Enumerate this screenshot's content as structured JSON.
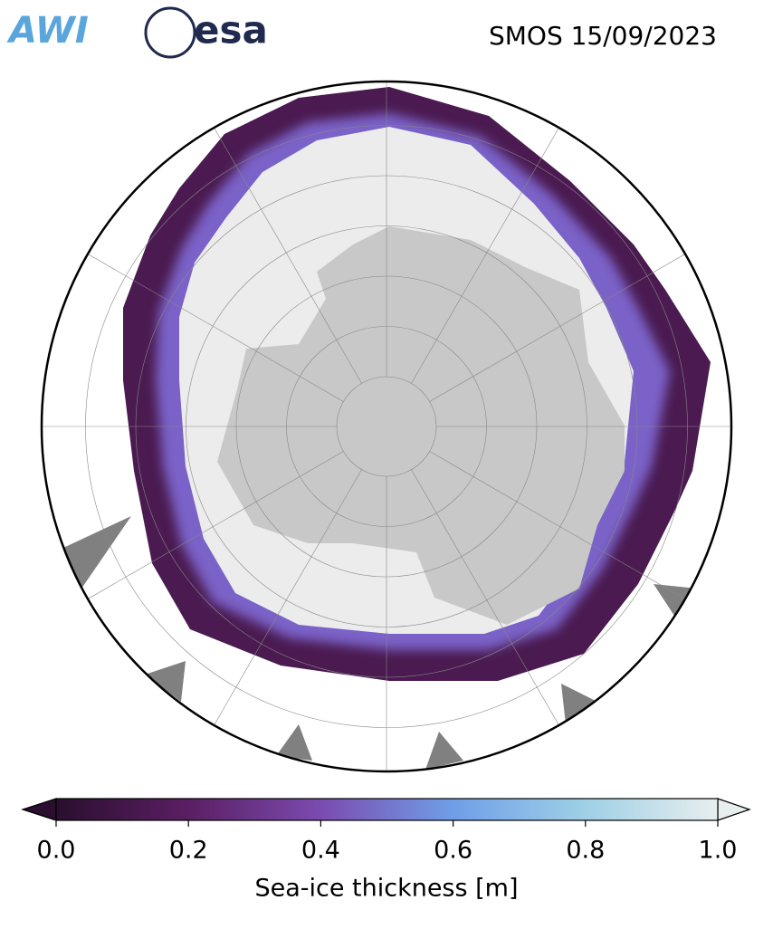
{
  "header": {
    "logos": [
      "AWI",
      "esa"
    ],
    "title": "SMOS 15/09/2023"
  },
  "colorbar": {
    "label": "Sea-ice thickness [m]",
    "lim": [
      0,
      1
    ],
    "ticks": [
      {
        "value": 0,
        "label": "0.0"
      },
      {
        "value": 0.2,
        "label": "0.2"
      },
      {
        "value": 0.4,
        "label": "0.4"
      },
      {
        "value": 0.6,
        "label": "0.6"
      },
      {
        "value": 0.8,
        "label": "0.8"
      },
      {
        "value": 1,
        "label": "1.0"
      }
    ],
    "colors": [
      "#2a0f2e",
      "#5a1f63",
      "#7b4bb0",
      "#6f9ee8",
      "#9fd0e6",
      "#e8eeee"
    ]
  }
}
